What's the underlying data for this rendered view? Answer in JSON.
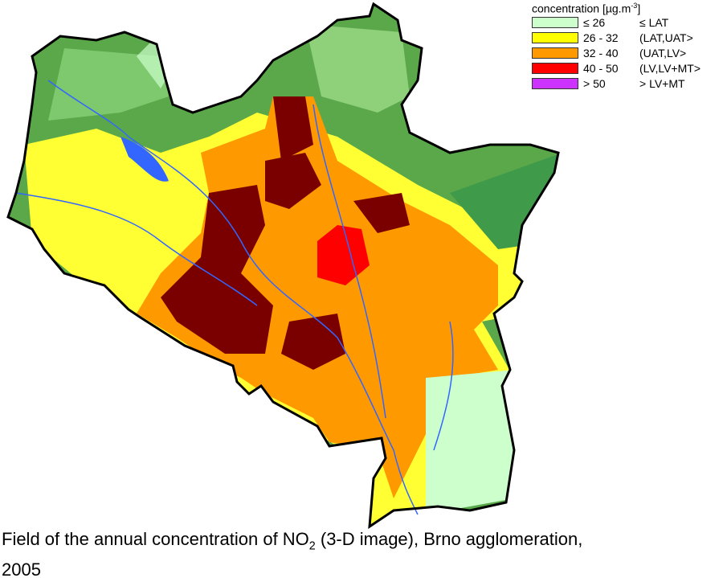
{
  "legend": {
    "title": [
      "concentration [µg.m",
      "-3",
      "]"
    ],
    "items": [
      {
        "range": "≤ 26",
        "label": "≤ LAT",
        "color": "#ccffcc"
      },
      {
        "range": "26 - 32",
        "label": "(LAT,UAT>",
        "color": "#ffff00"
      },
      {
        "range": "32 - 40",
        "label": "(UAT,LV>",
        "color": "#ff9900"
      },
      {
        "range": "40 - 50",
        "label": "(LV,LV+MT>",
        "color": "#ff0000"
      },
      {
        "range": "> 50",
        "label": "> LV+MT",
        "color": "#cc33ff"
      }
    ]
  },
  "caption": {
    "line1": [
      "Field of the annual concentration of NO",
      "2",
      " (3-D image), Brno agglomeration,"
    ],
    "line2": "2005"
  }
}
